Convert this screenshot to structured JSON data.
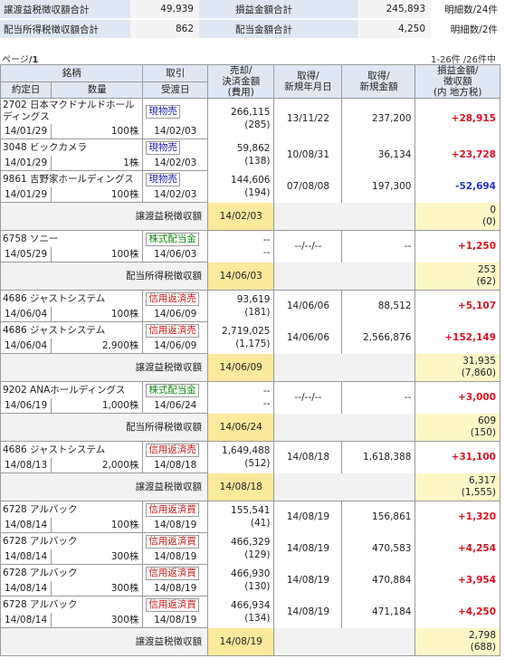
{
  "summary": {
    "rows": [
      {
        "l1": "譲渡益税徴収額合計",
        "v1": "49,939",
        "l2": "損益金額合計",
        "v2": "245,893",
        "cnt": "明細数/24件"
      },
      {
        "l1": "配当所得税徴収額合計",
        "v1": "862",
        "l2": "配当金額合計",
        "v2": "4,250",
        "cnt": "明細数/2件"
      }
    ]
  },
  "pager": {
    "left_prefix": "ページ",
    "left_page": "/1",
    "right": "1-26件 /26件中"
  },
  "headers": {
    "meigara": "銘柄",
    "torihiki": "取引",
    "uri": "売却/",
    "uri2": "決済金額",
    "uri3": "(費用)",
    "shutoku_date": "取得/",
    "shutoku_date2": "新規年月日",
    "shutoku_amt": "取得/",
    "shutoku_amt2": "新規金額",
    "soneki": "損益金額/",
    "soneki2": "徴収額",
    "soneki3": "(内 地方税)",
    "yakujo": "約定日",
    "suryo": "数量",
    "ukewatashi": "受渡日"
  },
  "rows": [
    {
      "type": "trade",
      "name": "2702 日本マクドナルドホールディングス",
      "yakujo": "14/01/29",
      "qty": "100株",
      "kind": "現物売",
      "kind_class": "sell",
      "ukewatashi": "14/02/03",
      "amt": "266,115",
      "fee": "(285)",
      "sdate": "13/11/22",
      "samt": "237,200",
      "pl": "+28,915",
      "pl_class": "pos"
    },
    {
      "type": "trade",
      "name": "3048 ビックカメラ",
      "yakujo": "14/01/29",
      "qty": "1株",
      "kind": "現物売",
      "kind_class": "sell",
      "ukewatashi": "14/02/03",
      "amt": "59,862",
      "fee": "(138)",
      "sdate": "10/08/31",
      "samt": "36,134",
      "pl": "+23,728",
      "pl_class": "pos"
    },
    {
      "type": "trade",
      "name": "9861 吉野家ホールディングス",
      "yakujo": "14/01/29",
      "qty": "100株",
      "kind": "現物売",
      "kind_class": "sell",
      "ukewatashi": "14/02/03",
      "amt": "144,606",
      "fee": "(194)",
      "sdate": "07/08/08",
      "samt": "197,300",
      "pl": "-52,694",
      "pl_class": "neg"
    },
    {
      "type": "tax",
      "label": "譲渡益税徴収額",
      "date": "14/02/03",
      "amt": "0",
      "local": "(0)"
    },
    {
      "type": "div",
      "name": "6758 ソニー",
      "yakujo": "14/05/29",
      "qty": "100株",
      "kind": "株式配当金",
      "kind_class": "div",
      "ukewatashi": "14/06/03",
      "amt": "--",
      "fee": "--",
      "sdate": "--/--/--",
      "samt": "--",
      "pl": "+1,250",
      "pl_class": "pos"
    },
    {
      "type": "tax",
      "label": "配当所得税徴収額",
      "date": "14/06/03",
      "amt": "253",
      "local": "(62)"
    },
    {
      "type": "trade",
      "name": "4686 ジャストシステム",
      "yakujo": "14/06/04",
      "qty": "100株",
      "kind": "信用返済売",
      "kind_class": "mgn",
      "ukewatashi": "14/06/09",
      "amt": "93,619",
      "fee": "(181)",
      "sdate": "14/06/06",
      "samt": "88,512",
      "pl": "+5,107",
      "pl_class": "pos"
    },
    {
      "type": "trade",
      "name": "4686 ジャストシステム",
      "yakujo": "14/06/04",
      "qty": "2,900株",
      "kind": "信用返済売",
      "kind_class": "mgn",
      "ukewatashi": "14/06/09",
      "amt": "2,719,025",
      "fee": "(1,175)",
      "sdate": "14/06/06",
      "samt": "2,566,876",
      "pl": "+152,149",
      "pl_class": "pos"
    },
    {
      "type": "tax",
      "label": "譲渡益税徴収額",
      "date": "14/06/09",
      "amt": "31,935",
      "local": "(7,860)"
    },
    {
      "type": "div",
      "name": "9202 ANAホールディングス",
      "yakujo": "14/06/19",
      "qty": "1,000株",
      "kind": "株式配当金",
      "kind_class": "div",
      "ukewatashi": "14/06/24",
      "amt": "--",
      "fee": "--",
      "sdate": "--/--/--",
      "samt": "--",
      "pl": "+3,000",
      "pl_class": "pos"
    },
    {
      "type": "tax",
      "label": "配当所得税徴収額",
      "date": "14/06/24",
      "amt": "609",
      "local": "(150)"
    },
    {
      "type": "trade",
      "name": "4686 ジャストシステム",
      "yakujo": "14/08/13",
      "qty": "2,000株",
      "kind": "信用返済売",
      "kind_class": "mgn",
      "ukewatashi": "14/08/18",
      "amt": "1,649,488",
      "fee": "(512)",
      "sdate": "14/08/18",
      "samt": "1,618,388",
      "pl": "+31,100",
      "pl_class": "pos"
    },
    {
      "type": "tax",
      "label": "譲渡益税徴収額",
      "date": "14/08/18",
      "amt": "6,317",
      "local": "(1,555)"
    },
    {
      "type": "trade",
      "name": "6728 アルバック",
      "yakujo": "14/08/14",
      "qty": "100株",
      "kind": "信用返済買",
      "kind_class": "mgn",
      "ukewatashi": "14/08/19",
      "amt": "155,541",
      "fee": "(41)",
      "sdate": "14/08/19",
      "samt": "156,861",
      "pl": "+1,320",
      "pl_class": "pos"
    },
    {
      "type": "trade",
      "name": "6728 アルバック",
      "yakujo": "14/08/14",
      "qty": "300株",
      "kind": "信用返済買",
      "kind_class": "mgn",
      "ukewatashi": "14/08/19",
      "amt": "466,329",
      "fee": "(129)",
      "sdate": "14/08/19",
      "samt": "470,583",
      "pl": "+4,254",
      "pl_class": "pos"
    },
    {
      "type": "trade",
      "name": "6728 アルバック",
      "yakujo": "14/08/14",
      "qty": "300株",
      "kind": "信用返済買",
      "kind_class": "mgn",
      "ukewatashi": "14/08/19",
      "amt": "466,930",
      "fee": "(130)",
      "sdate": "14/08/19",
      "samt": "470,884",
      "pl": "+3,954",
      "pl_class": "pos"
    },
    {
      "type": "trade",
      "name": "6728 アルバック",
      "yakujo": "14/08/14",
      "qty": "300株",
      "kind": "信用返済買",
      "kind_class": "mgn",
      "ukewatashi": "14/08/19",
      "amt": "466,934",
      "fee": "(134)",
      "sdate": "14/08/19",
      "samt": "471,184",
      "pl": "+4,250",
      "pl_class": "pos"
    },
    {
      "type": "tax",
      "label": "譲渡益税徴収額",
      "date": "14/08/19",
      "amt": "2,798",
      "local": "(688)"
    }
  ]
}
